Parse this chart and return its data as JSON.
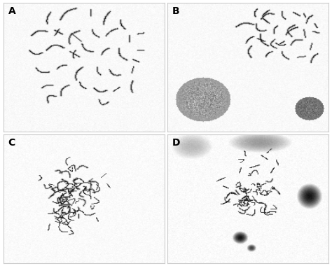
{
  "figure_width": 4.74,
  "figure_height": 3.8,
  "dpi": 100,
  "background_color": "#ffffff",
  "panel_labels": [
    "A",
    "B",
    "C",
    "D"
  ],
  "label_fontsize": 10,
  "label_fontweight": "bold",
  "border_color": "#cccccc",
  "border_linewidth": 0.8,
  "chrom_dark": 0.15,
  "chrom_light": 0.72,
  "bg_gray": 0.97,
  "blob_B1_gray": 0.62,
  "blob_B2_gray": 0.5,
  "blob_D_dark": 0.1,
  "blob_D_medium": 0.25,
  "blob_D_smear": 0.78,
  "panel_size": 200
}
